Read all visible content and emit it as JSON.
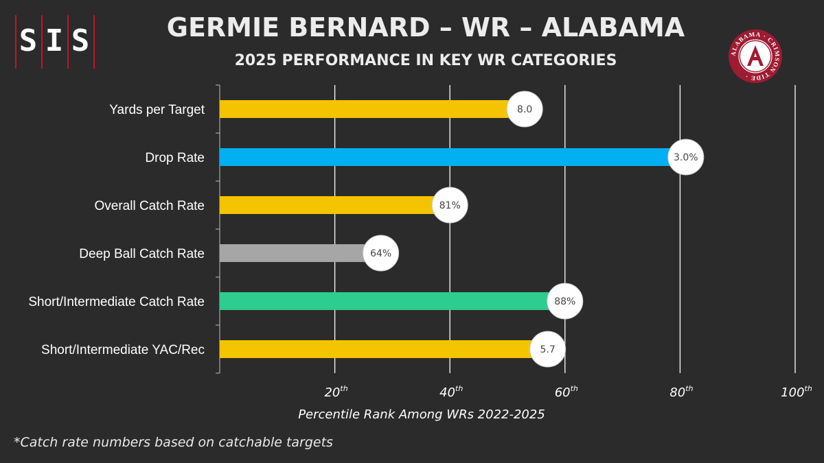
{
  "brand": {
    "letters": [
      "S",
      "I",
      "S"
    ],
    "accent_color": "#c8102e"
  },
  "header": {
    "title": "GERMIE BERNARD – WR – ALABAMA",
    "subtitle": "2025 PERFORMANCE IN KEY WR CATEGORIES"
  },
  "team_logo": {
    "icon": "alabama-crimson-tide-logo",
    "ring_text": "ALABAMA · CRIMSON TIDE ·",
    "color": "#9e1b32"
  },
  "footnote": "*Catch rate numbers based on catchable targets",
  "chart_data": {
    "type": "bar",
    "orientation": "horizontal",
    "categories": [
      "Yards per Target",
      "Drop Rate",
      "Overall Catch Rate",
      "Deep Ball Catch Rate",
      "Short/Intermediate Catch Rate",
      "Short/Intermediate YAC/Rec"
    ],
    "values": [
      53,
      81,
      40,
      28,
      60,
      57
    ],
    "value_labels": [
      "8.0",
      "3.0%",
      "81%",
      "64%",
      "88%",
      "5.7"
    ],
    "bar_colors": [
      "#f5c400",
      "#00b0f0",
      "#f5c400",
      "#a6a6a6",
      "#2ecc8f",
      "#f5c400"
    ],
    "xlabel": "Percentile Rank Among WRs 2022-2025",
    "xlim": [
      0,
      100
    ],
    "xticks": [
      20,
      40,
      60,
      80,
      100
    ],
    "xtick_suffix": "th",
    "grid": true
  }
}
